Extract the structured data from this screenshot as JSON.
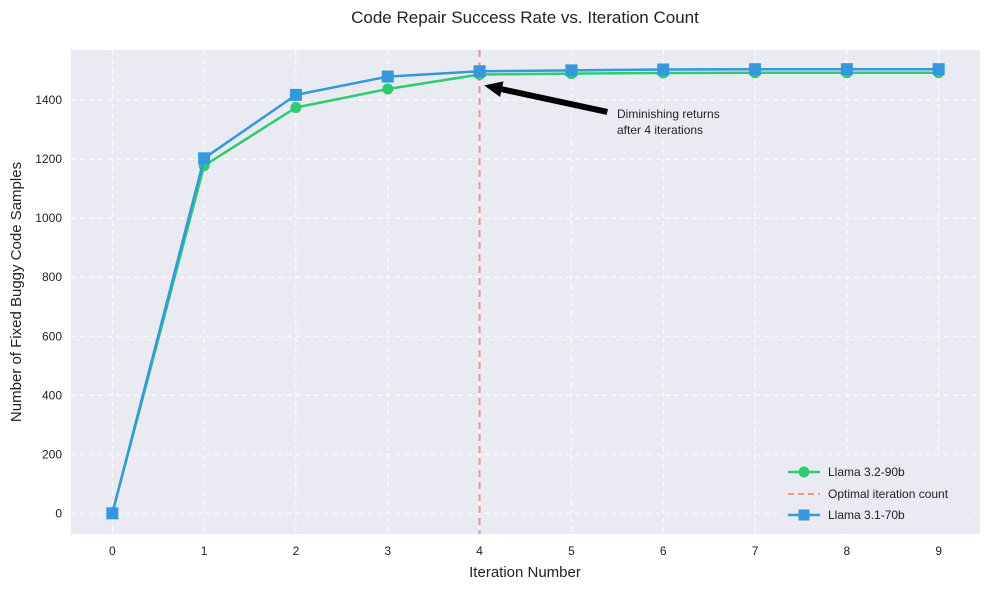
{
  "chart_data": {
    "type": "line",
    "title": "Code Repair Success Rate vs. Iteration Count",
    "xlabel": "Iteration Number",
    "ylabel": "Number of Fixed Buggy Code Samples",
    "x": [
      0,
      1,
      2,
      3,
      4,
      5,
      6,
      7,
      8,
      9
    ],
    "xlim": [
      -0.45,
      9.45
    ],
    "ylim": [
      -70,
      1570
    ],
    "xticks": [
      0,
      1,
      2,
      3,
      4,
      5,
      6,
      7,
      8,
      9
    ],
    "yticks": [
      0,
      200,
      400,
      600,
      800,
      1000,
      1200,
      1400
    ],
    "grid": true,
    "legend_position": "bottom-right",
    "series": [
      {
        "name": "Llama 3.2-90b",
        "marker": "circle",
        "color": "#2ecc71",
        "values": [
          0,
          1178,
          1375,
          1438,
          1487,
          1490,
          1492,
          1493,
          1493,
          1493
        ]
      },
      {
        "name": "Llama 3.1-70b",
        "marker": "square",
        "color": "#3498db",
        "values": [
          0,
          1203,
          1418,
          1480,
          1498,
          1501,
          1504,
          1505,
          1505,
          1505
        ]
      }
    ],
    "reference_line": {
      "name": "Optimal iteration count",
      "x": 4,
      "color": "#f1948a",
      "style": "dashed"
    },
    "annotation": {
      "text": [
        "Diminishing returns",
        "after 4 iterations"
      ],
      "point": {
        "x": 4.05,
        "y": 1450
      },
      "text_anchor": {
        "x": 5.5,
        "y": 1350
      }
    }
  }
}
